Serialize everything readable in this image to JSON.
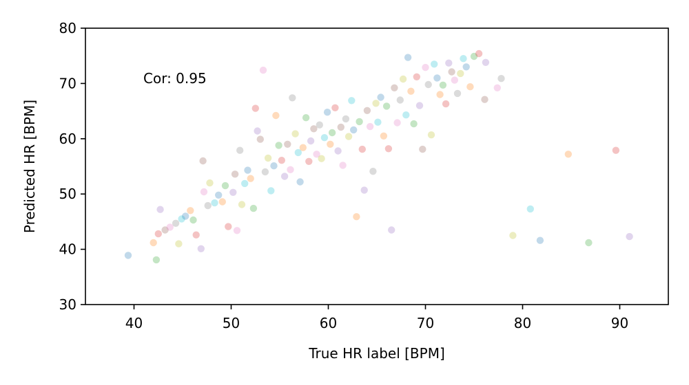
{
  "chart_data": {
    "type": "scatter",
    "xlabel": "True HR label [BPM]",
    "ylabel": "Predicted HR [BPM]",
    "xlim": [
      35,
      95
    ],
    "ylim": [
      30,
      80
    ],
    "xticks": [
      40,
      50,
      60,
      70,
      80,
      90
    ],
    "yticks": [
      30,
      40,
      50,
      60,
      70,
      80
    ],
    "grid": false,
    "annotation": "Cor: 0.95",
    "point_alpha": 0.28,
    "palette": [
      "#1f77b4",
      "#ff7f0e",
      "#2ca02c",
      "#d62728",
      "#9467bd",
      "#8c564b",
      "#e377c2",
      "#7f7f7f",
      "#bcbd22",
      "#17becf"
    ],
    "points": [
      [
        39.4,
        38.9
      ],
      [
        42.0,
        41.2
      ],
      [
        42.3,
        38.1
      ],
      [
        42.5,
        42.8
      ],
      [
        42.7,
        47.2
      ],
      [
        43.2,
        43.5
      ],
      [
        43.7,
        44.0
      ],
      [
        44.3,
        44.7
      ],
      [
        44.6,
        41.0
      ],
      [
        44.9,
        45.5
      ],
      [
        45.3,
        46.0
      ],
      [
        45.8,
        47.0
      ],
      [
        46.1,
        45.3
      ],
      [
        46.4,
        42.6
      ],
      [
        46.9,
        40.1
      ],
      [
        47.1,
        56.0
      ],
      [
        47.2,
        50.4
      ],
      [
        47.6,
        47.9
      ],
      [
        47.8,
        52.0
      ],
      [
        48.3,
        48.4
      ],
      [
        48.7,
        49.8
      ],
      [
        49.1,
        48.6
      ],
      [
        49.4,
        51.5
      ],
      [
        49.7,
        44.1
      ],
      [
        50.2,
        50.3
      ],
      [
        50.4,
        53.6
      ],
      [
        50.6,
        43.4
      ],
      [
        50.9,
        57.9
      ],
      [
        51.1,
        48.1
      ],
      [
        51.4,
        51.9
      ],
      [
        51.7,
        54.3
      ],
      [
        52.0,
        52.8
      ],
      [
        52.3,
        47.4
      ],
      [
        52.5,
        65.5
      ],
      [
        52.7,
        61.4
      ],
      [
        53.0,
        59.9
      ],
      [
        53.3,
        72.4
      ],
      [
        53.5,
        54.0
      ],
      [
        53.8,
        56.5
      ],
      [
        54.1,
        50.6
      ],
      [
        54.4,
        55.1
      ],
      [
        54.6,
        64.2
      ],
      [
        54.9,
        58.8
      ],
      [
        55.2,
        56.1
      ],
      [
        55.5,
        53.2
      ],
      [
        55.8,
        59.0
      ],
      [
        56.1,
        54.4
      ],
      [
        56.3,
        67.4
      ],
      [
        56.6,
        60.9
      ],
      [
        56.9,
        57.5
      ],
      [
        57.1,
        52.2
      ],
      [
        57.4,
        58.4
      ],
      [
        57.7,
        63.8
      ],
      [
        58.0,
        55.9
      ],
      [
        58.2,
        59.6
      ],
      [
        58.5,
        61.8
      ],
      [
        58.8,
        57.2
      ],
      [
        59.1,
        62.5
      ],
      [
        59.3,
        56.4
      ],
      [
        59.6,
        60.2
      ],
      [
        59.9,
        64.8
      ],
      [
        60.2,
        59.0
      ],
      [
        60.4,
        61.1
      ],
      [
        60.7,
        65.6
      ],
      [
        61.0,
        57.8
      ],
      [
        61.3,
        62.1
      ],
      [
        61.5,
        55.2
      ],
      [
        61.8,
        63.6
      ],
      [
        62.1,
        60.4
      ],
      [
        62.4,
        66.9
      ],
      [
        62.6,
        61.6
      ],
      [
        62.9,
        45.9
      ],
      [
        63.2,
        63.1
      ],
      [
        63.5,
        58.1
      ],
      [
        63.7,
        50.7
      ],
      [
        64.0,
        65.1
      ],
      [
        64.3,
        62.2
      ],
      [
        64.6,
        54.1
      ],
      [
        64.9,
        66.4
      ],
      [
        65.1,
        63.0
      ],
      [
        65.4,
        67.5
      ],
      [
        65.7,
        60.5
      ],
      [
        66.0,
        65.9
      ],
      [
        66.2,
        58.2
      ],
      [
        66.5,
        43.5
      ],
      [
        66.8,
        69.2
      ],
      [
        67.1,
        62.9
      ],
      [
        67.4,
        67.0
      ],
      [
        67.7,
        70.8
      ],
      [
        68.0,
        64.3
      ],
      [
        68.2,
        74.7
      ],
      [
        68.5,
        68.6
      ],
      [
        68.8,
        62.7
      ],
      [
        69.1,
        71.2
      ],
      [
        69.4,
        66.0
      ],
      [
        69.7,
        58.1
      ],
      [
        70.0,
        72.9
      ],
      [
        70.3,
        69.8
      ],
      [
        70.6,
        60.7
      ],
      [
        70.9,
        73.5
      ],
      [
        71.2,
        71.0
      ],
      [
        71.5,
        68.0
      ],
      [
        71.8,
        69.7
      ],
      [
        72.1,
        66.3
      ],
      [
        72.4,
        73.7
      ],
      [
        72.7,
        72.1
      ],
      [
        73.0,
        70.6
      ],
      [
        73.3,
        68.2
      ],
      [
        73.6,
        71.8
      ],
      [
        73.9,
        74.5
      ],
      [
        74.2,
        73.0
      ],
      [
        74.6,
        69.4
      ],
      [
        75.0,
        74.9
      ],
      [
        75.5,
        75.4
      ],
      [
        76.2,
        73.8
      ],
      [
        76.1,
        67.1
      ],
      [
        77.4,
        69.2
      ],
      [
        77.8,
        70.9
      ],
      [
        79.0,
        42.5
      ],
      [
        80.8,
        47.3
      ],
      [
        81.8,
        41.6
      ],
      [
        84.7,
        57.2
      ],
      [
        86.8,
        41.2
      ],
      [
        89.6,
        57.9
      ],
      [
        91.0,
        42.3
      ]
    ]
  }
}
